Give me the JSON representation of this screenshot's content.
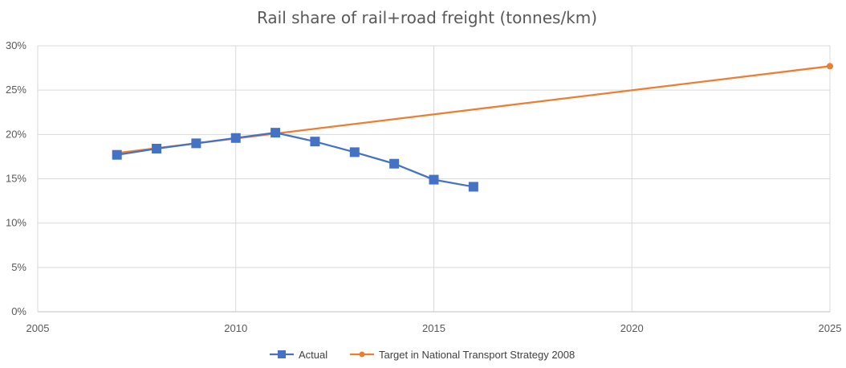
{
  "chart_data": {
    "type": "scatter",
    "title": "Rail share of rail+road freight (tonnes/km)",
    "xlabel": "",
    "ylabel": "",
    "xlim": [
      2005,
      2025
    ],
    "ylim": [
      0,
      30
    ],
    "x_ticks": [
      2005,
      2010,
      2015,
      2020,
      2025
    ],
    "x_tick_labels": [
      "2005",
      "2010",
      "2015",
      "2020",
      "2025"
    ],
    "y_ticks": [
      0,
      5,
      10,
      15,
      20,
      25,
      30
    ],
    "y_tick_labels": [
      "0%",
      "5%",
      "10%",
      "15%",
      "20%",
      "25%",
      "30%"
    ],
    "grid": true,
    "legend_position": "bottom",
    "series": [
      {
        "name": "Actual",
        "color": "#4472c4",
        "marker": "square",
        "x": [
          2007,
          2008,
          2009,
          2010,
          2011,
          2012,
          2013,
          2014,
          2015,
          2016
        ],
        "values": [
          17.7,
          18.4,
          19.0,
          19.6,
          20.2,
          19.2,
          18.0,
          16.7,
          14.9,
          14.1
        ]
      },
      {
        "name": "Target in National Transport Strategy 2008",
        "color": "#ed7d31",
        "marker": "circle",
        "x": [
          2007,
          2011,
          2025
        ],
        "values": [
          17.9,
          20.1,
          27.7
        ],
        "marker_indices": [
          2
        ]
      }
    ]
  }
}
